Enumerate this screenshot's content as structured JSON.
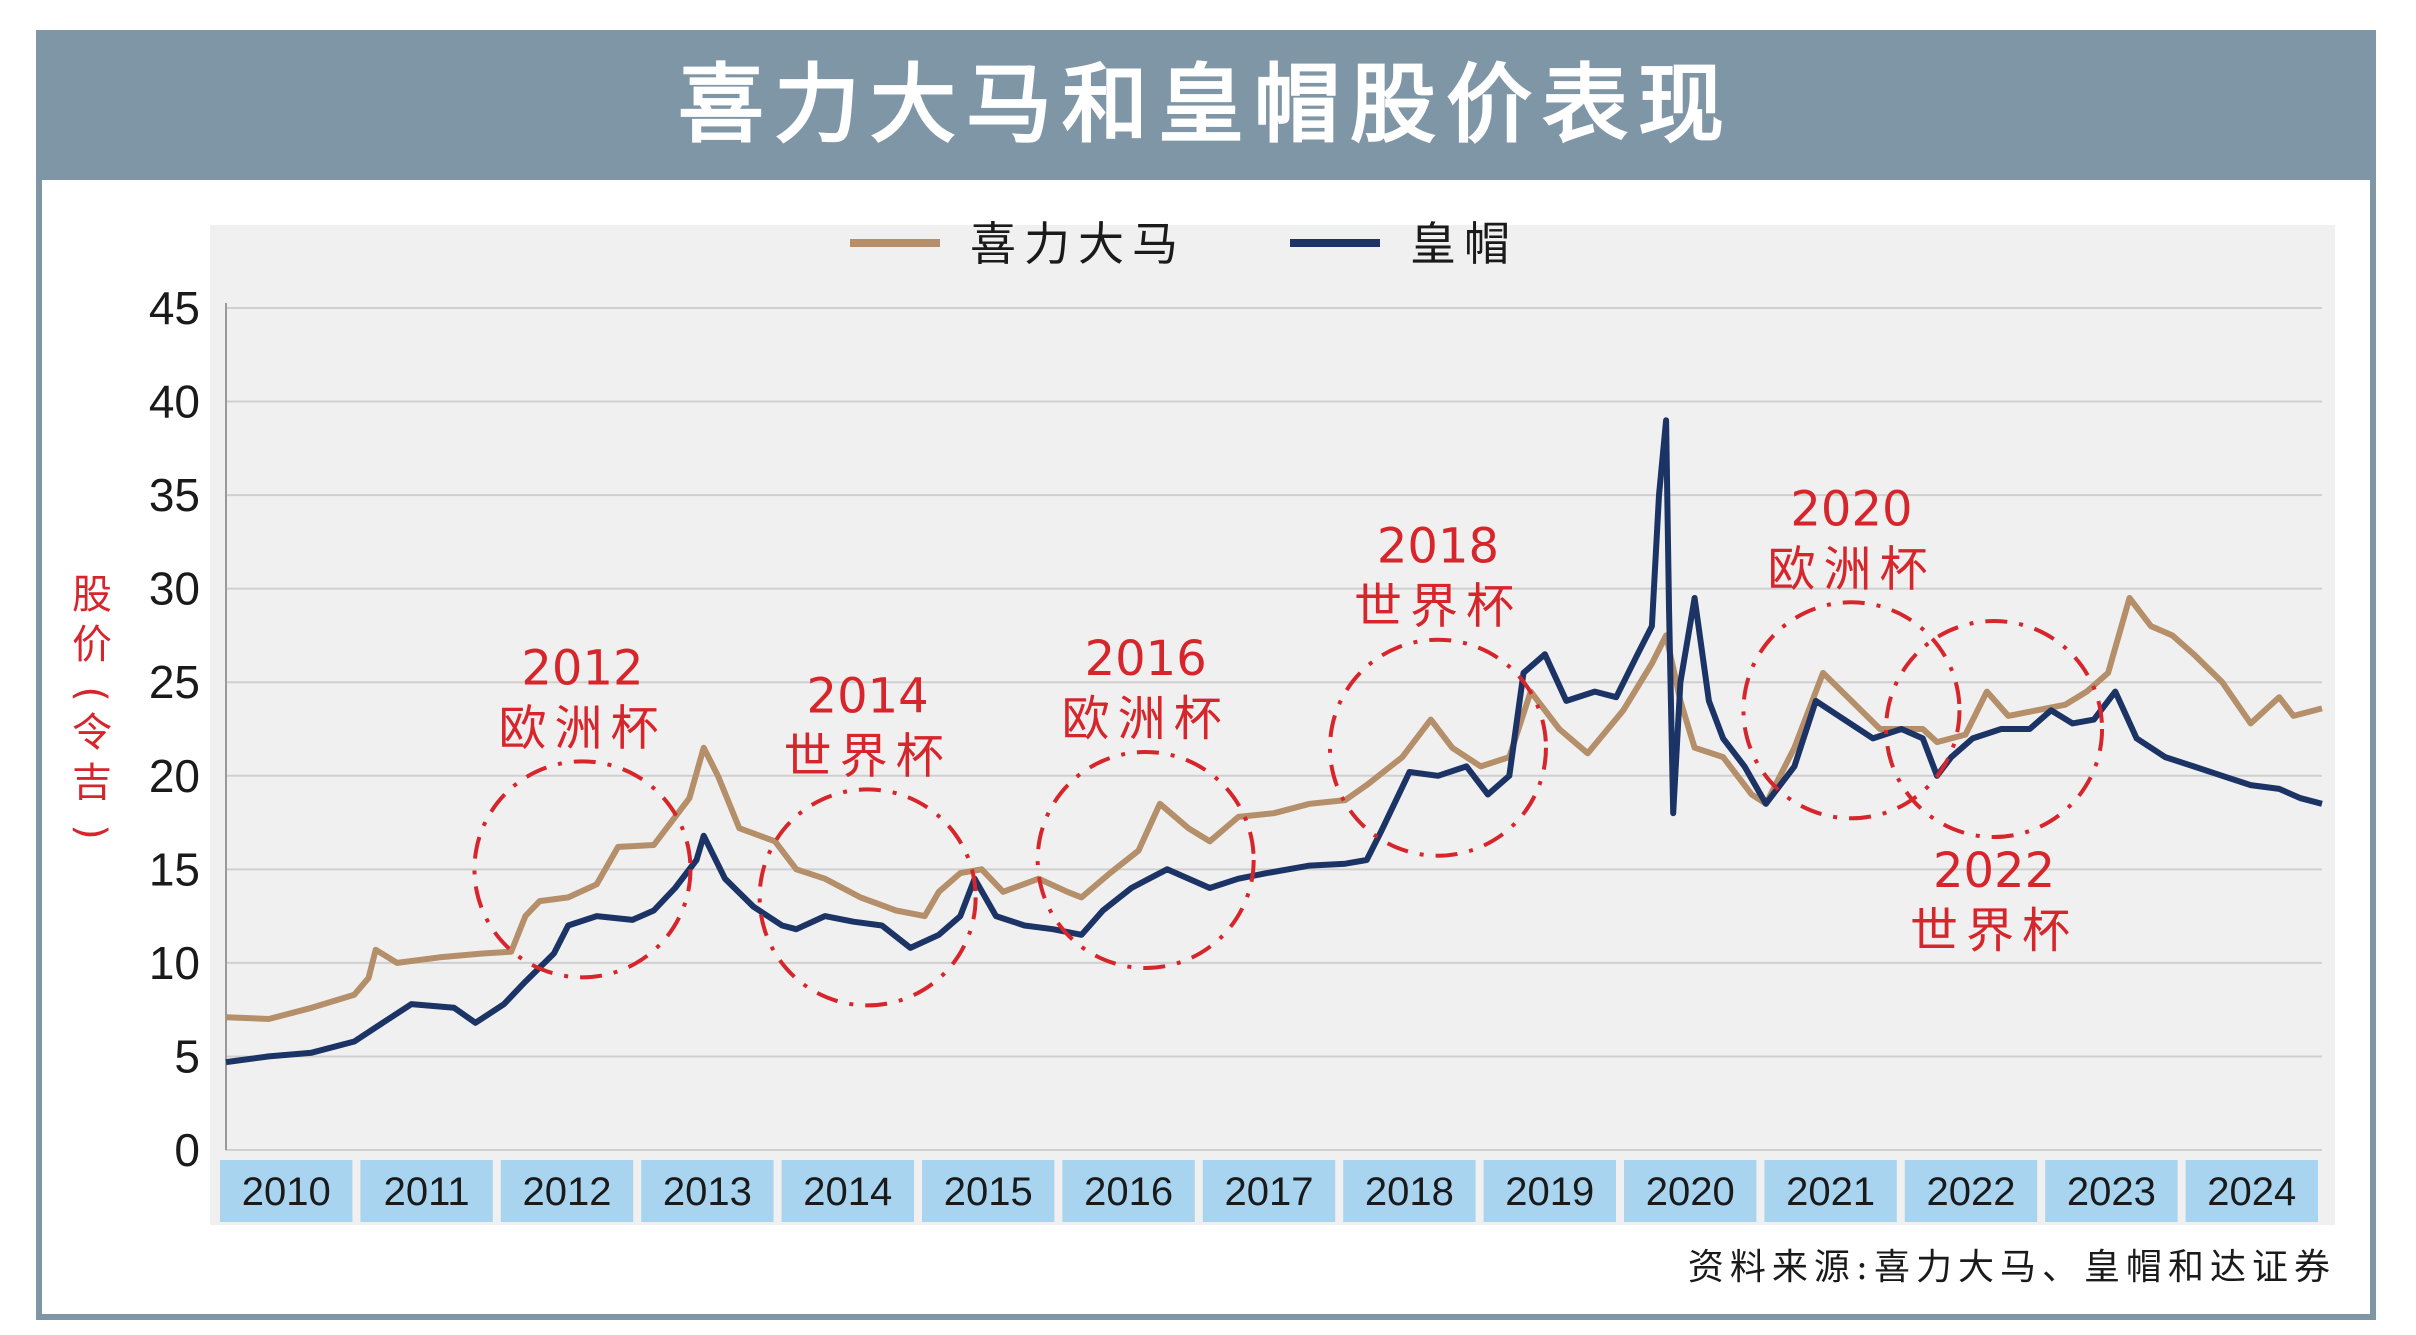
{
  "title": "喜力大马和皇帽股价表现",
  "source": "资料来源:喜力大马、皇帽和达证券",
  "colors": {
    "heineken": "#b48f6a",
    "crown": "#1c3366",
    "annotation": "#d6262b",
    "year_band": "#a8d4f0",
    "frame": "#7f96a6"
  },
  "chart_data": {
    "type": "line",
    "ylabel": "股价(令吉)",
    "ylim": [
      0,
      45
    ],
    "yticks": [
      "0",
      "5",
      "10",
      "15",
      "20",
      "25",
      "30",
      "35",
      "40",
      "45"
    ],
    "xlim": [
      2010.0,
      2024.7
    ],
    "x_categories": [
      "2010",
      "2011",
      "2012",
      "2013",
      "2014",
      "2015",
      "2016",
      "2017",
      "2018",
      "2019",
      "2020",
      "2021",
      "2022",
      "2023",
      "2024"
    ],
    "grid": true,
    "legend": "top-center",
    "series": [
      {
        "name": "喜力大马",
        "points": [
          [
            2010.0,
            7.1
          ],
          [
            2010.3,
            7.0
          ],
          [
            2010.6,
            7.6
          ],
          [
            2010.9,
            8.3
          ],
          [
            2011.0,
            9.2
          ],
          [
            2011.05,
            10.7
          ],
          [
            2011.2,
            10.0
          ],
          [
            2011.5,
            10.3
          ],
          [
            2011.8,
            10.5
          ],
          [
            2012.0,
            10.6
          ],
          [
            2012.1,
            12.5
          ],
          [
            2012.2,
            13.3
          ],
          [
            2012.4,
            13.5
          ],
          [
            2012.6,
            14.2
          ],
          [
            2012.75,
            16.2
          ],
          [
            2013.0,
            16.3
          ],
          [
            2013.15,
            17.8
          ],
          [
            2013.25,
            18.8
          ],
          [
            2013.35,
            21.5
          ],
          [
            2013.45,
            20.0
          ],
          [
            2013.6,
            17.2
          ],
          [
            2013.85,
            16.5
          ],
          [
            2014.0,
            15.0
          ],
          [
            2014.2,
            14.5
          ],
          [
            2014.45,
            13.5
          ],
          [
            2014.7,
            12.8
          ],
          [
            2014.9,
            12.5
          ],
          [
            2015.0,
            13.8
          ],
          [
            2015.15,
            14.8
          ],
          [
            2015.3,
            15.0
          ],
          [
            2015.45,
            13.8
          ],
          [
            2015.7,
            14.5
          ],
          [
            2015.9,
            13.8
          ],
          [
            2016.0,
            13.5
          ],
          [
            2016.2,
            14.8
          ],
          [
            2016.4,
            16.0
          ],
          [
            2016.55,
            18.5
          ],
          [
            2016.75,
            17.2
          ],
          [
            2016.9,
            16.5
          ],
          [
            2017.1,
            17.8
          ],
          [
            2017.35,
            18.0
          ],
          [
            2017.6,
            18.5
          ],
          [
            2017.85,
            18.7
          ],
          [
            2018.0,
            19.5
          ],
          [
            2018.25,
            21.0
          ],
          [
            2018.45,
            23.0
          ],
          [
            2018.6,
            21.5
          ],
          [
            2018.8,
            20.5
          ],
          [
            2019.0,
            21.0
          ],
          [
            2019.15,
            24.5
          ],
          [
            2019.35,
            22.5
          ],
          [
            2019.55,
            21.2
          ],
          [
            2019.8,
            23.5
          ],
          [
            2020.0,
            26.0
          ],
          [
            2020.1,
            27.5
          ],
          [
            2020.2,
            24.0
          ],
          [
            2020.3,
            21.5
          ],
          [
            2020.5,
            21.0
          ],
          [
            2020.7,
            19.0
          ],
          [
            2020.8,
            18.5
          ],
          [
            2021.0,
            21.5
          ],
          [
            2021.2,
            25.5
          ],
          [
            2021.4,
            24.0
          ],
          [
            2021.6,
            22.5
          ],
          [
            2021.9,
            22.5
          ],
          [
            2022.0,
            21.8
          ],
          [
            2022.2,
            22.2
          ],
          [
            2022.35,
            24.5
          ],
          [
            2022.5,
            23.2
          ],
          [
            2022.7,
            23.5
          ],
          [
            2022.9,
            23.8
          ],
          [
            2023.05,
            24.5
          ],
          [
            2023.2,
            25.5
          ],
          [
            2023.35,
            29.5
          ],
          [
            2023.5,
            28.0
          ],
          [
            2023.65,
            27.5
          ],
          [
            2023.8,
            26.5
          ],
          [
            2024.0,
            25.0
          ],
          [
            2024.2,
            22.8
          ],
          [
            2024.4,
            24.2
          ],
          [
            2024.5,
            23.2
          ],
          [
            2024.7,
            23.6
          ]
        ]
      },
      {
        "name": "皇帽",
        "points": [
          [
            2010.0,
            4.7
          ],
          [
            2010.3,
            5.0
          ],
          [
            2010.6,
            5.2
          ],
          [
            2010.9,
            5.8
          ],
          [
            2011.1,
            6.8
          ],
          [
            2011.3,
            7.8
          ],
          [
            2011.6,
            7.6
          ],
          [
            2011.75,
            6.8
          ],
          [
            2011.95,
            7.8
          ],
          [
            2012.1,
            9.0
          ],
          [
            2012.3,
            10.5
          ],
          [
            2012.4,
            12.0
          ],
          [
            2012.6,
            12.5
          ],
          [
            2012.85,
            12.3
          ],
          [
            2013.0,
            12.8
          ],
          [
            2013.15,
            14.0
          ],
          [
            2013.3,
            15.5
          ],
          [
            2013.35,
            16.8
          ],
          [
            2013.5,
            14.5
          ],
          [
            2013.7,
            13.0
          ],
          [
            2013.9,
            12.0
          ],
          [
            2014.0,
            11.8
          ],
          [
            2014.2,
            12.5
          ],
          [
            2014.4,
            12.2
          ],
          [
            2014.6,
            12.0
          ],
          [
            2014.8,
            10.8
          ],
          [
            2015.0,
            11.5
          ],
          [
            2015.15,
            12.5
          ],
          [
            2015.25,
            14.5
          ],
          [
            2015.4,
            12.5
          ],
          [
            2015.6,
            12.0
          ],
          [
            2015.8,
            11.8
          ],
          [
            2016.0,
            11.5
          ],
          [
            2016.15,
            12.8
          ],
          [
            2016.35,
            14.0
          ],
          [
            2016.6,
            15.0
          ],
          [
            2016.9,
            14.0
          ],
          [
            2017.1,
            14.5
          ],
          [
            2017.3,
            14.8
          ],
          [
            2017.6,
            15.2
          ],
          [
            2017.85,
            15.3
          ],
          [
            2018.0,
            15.5
          ],
          [
            2018.1,
            17.0
          ],
          [
            2018.3,
            20.2
          ],
          [
            2018.5,
            20.0
          ],
          [
            2018.7,
            20.5
          ],
          [
            2018.85,
            19.0
          ],
          [
            2019.0,
            20.0
          ],
          [
            2019.1,
            25.5
          ],
          [
            2019.25,
            26.5
          ],
          [
            2019.4,
            24.0
          ],
          [
            2019.6,
            24.5
          ],
          [
            2019.75,
            24.2
          ],
          [
            2019.9,
            26.5
          ],
          [
            2020.0,
            28.0
          ],
          [
            2020.05,
            35.0
          ],
          [
            2020.1,
            39.0
          ],
          [
            2020.12,
            29.0
          ],
          [
            2020.15,
            18.0
          ],
          [
            2020.2,
            25.0
          ],
          [
            2020.3,
            29.5
          ],
          [
            2020.4,
            24.0
          ],
          [
            2020.5,
            22.0
          ],
          [
            2020.65,
            20.5
          ],
          [
            2020.8,
            18.5
          ],
          [
            2021.0,
            20.5
          ],
          [
            2021.15,
            24.0
          ],
          [
            2021.35,
            23.0
          ],
          [
            2021.55,
            22.0
          ],
          [
            2021.75,
            22.5
          ],
          [
            2021.9,
            22.0
          ],
          [
            2022.0,
            20.0
          ],
          [
            2022.1,
            21.0
          ],
          [
            2022.25,
            22.0
          ],
          [
            2022.45,
            22.5
          ],
          [
            2022.65,
            22.5
          ],
          [
            2022.8,
            23.5
          ],
          [
            2022.95,
            22.8
          ],
          [
            2023.1,
            23.0
          ],
          [
            2023.25,
            24.5
          ],
          [
            2023.4,
            22.0
          ],
          [
            2023.6,
            21.0
          ],
          [
            2023.8,
            20.5
          ],
          [
            2024.0,
            20.0
          ],
          [
            2024.2,
            19.5
          ],
          [
            2024.4,
            19.3
          ],
          [
            2024.55,
            18.8
          ],
          [
            2024.7,
            18.5
          ]
        ]
      }
    ],
    "annotations": [
      {
        "year": "2012",
        "event": "欧洲杯",
        "circle_x": 2012.5,
        "circle_y": 15.0,
        "label_above": true
      },
      {
        "year": "2014",
        "event": "世界杯",
        "circle_x": 2014.5,
        "circle_y": 13.5,
        "label_above": true
      },
      {
        "year": "2016",
        "event": "欧洲杯",
        "circle_x": 2016.45,
        "circle_y": 15.5,
        "label_above": true
      },
      {
        "year": "2018",
        "event": "世界杯",
        "circle_x": 2018.5,
        "circle_y": 21.5,
        "label_above": true
      },
      {
        "year": "2020",
        "event": "欧洲杯",
        "circle_x": 2021.4,
        "circle_y": 23.5,
        "label_above": true
      },
      {
        "year": "2022",
        "event": "世界杯",
        "circle_x": 2022.4,
        "circle_y": 22.5,
        "label_above": false
      }
    ]
  }
}
